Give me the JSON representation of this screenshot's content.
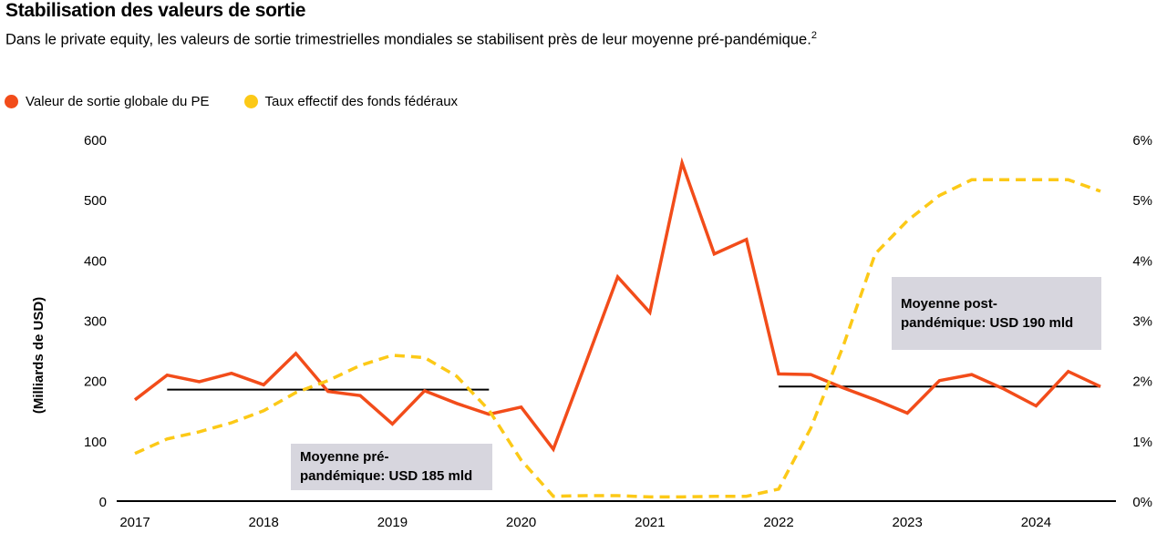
{
  "title": "Stabilisation des valeurs de sortie",
  "subtitle": "Dans le private equity, les valeurs de sortie trimestrielles mondiales se stabilisent près de leur moyenne pré-pandémique.",
  "footnote_ref": "2",
  "chart_data": {
    "type": "line",
    "title": "Stabilisation des valeurs de sortie",
    "ylabel": "(Milliards de USD)",
    "ylim": [
      0,
      600
    ],
    "y2lim": [
      0,
      6
    ],
    "yticks": [
      "0",
      "100",
      "200",
      "300",
      "400",
      "500",
      "600"
    ],
    "y2ticks": [
      "0%",
      "1%",
      "2%",
      "3%",
      "4%",
      "5%",
      "6%"
    ],
    "xticks": [
      "2017",
      "2018",
      "2019",
      "2020",
      "2021",
      "2022",
      "2023",
      "2024"
    ],
    "x": [
      2017.0,
      2017.25,
      2017.5,
      2017.75,
      2018.0,
      2018.25,
      2018.5,
      2018.75,
      2019.0,
      2019.25,
      2019.5,
      2019.75,
      2020.0,
      2020.25,
      2020.5,
      2020.75,
      2021.0,
      2021.25,
      2021.5,
      2021.75,
      2022.0,
      2022.25,
      2022.5,
      2022.75,
      2023.0,
      2023.25,
      2023.5,
      2023.75,
      2024.0,
      2024.25,
      2024.5
    ],
    "legend_position": "top-left",
    "grid": false,
    "series": [
      {
        "name": "Valeur de sortie globale du PE",
        "axis": "left",
        "color": "#f24c1a",
        "style": "solid",
        "values": [
          168,
          209,
          198,
          212,
          193,
          245,
          182,
          175,
          128,
          183,
          162,
          144,
          156,
          86,
          228,
          372,
          313,
          561,
          410,
          434,
          211,
          210,
          188,
          168,
          146,
          200,
          210,
          186,
          158,
          215,
          190
        ]
      },
      {
        "name": "Taux effectif des fonds fédéraux",
        "axis": "right",
        "color": "#fcc917",
        "style": "dashed",
        "values": [
          0.79,
          1.03,
          1.15,
          1.3,
          1.5,
          1.8,
          2.0,
          2.25,
          2.42,
          2.38,
          2.07,
          1.51,
          0.68,
          0.08,
          0.09,
          0.09,
          0.07,
          0.07,
          0.08,
          0.08,
          0.2,
          1.21,
          2.56,
          4.1,
          4.65,
          5.07,
          5.33,
          5.33,
          5.33,
          5.33,
          5.14
        ]
      }
    ],
    "reference_lines": [
      {
        "label": "Moyenne pré-pandémique: USD 185 mld",
        "label_line1": "Moyenne pré-",
        "label_line2": "pandémique: USD 185 mld",
        "value": 185,
        "from": 2017.25,
        "to": 2019.75
      },
      {
        "label": "Moyenne post-pandémique: USD 190 mld",
        "label_line1": "Moyenne post-",
        "label_line2": "pandémique: USD 190 mld",
        "value": 190,
        "from": 2022.0,
        "to": 2024.5
      }
    ]
  }
}
